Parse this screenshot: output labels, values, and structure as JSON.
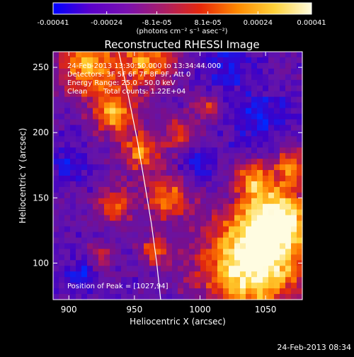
{
  "colorbar": {
    "tick_labels": [
      "-0.00041",
      "-0.00024",
      "-8.1e-05",
      "8.1e-05",
      "0.00024",
      "0.00041"
    ],
    "tick_values": [
      -0.00041,
      -0.00024,
      -8.1e-05,
      8.1e-05,
      0.00024,
      0.00041
    ],
    "range": [
      -0.00041,
      0.00041
    ],
    "unit_label": "(photons cm⁻² s⁻¹ asec⁻²)",
    "colors": [
      "#0000ff",
      "#5a00cc",
      "#7a10b0",
      "#aa1e66",
      "#e8280a",
      "#ff8a00",
      "#ffd23a",
      "#fffce0"
    ]
  },
  "annotations": {
    "time_range": "24-Feb-2013 13:30:50.000 to 13:34:44.000",
    "detectors": "Detectors: 3F 5F 6F 7F 8F 9F, Att 0",
    "energy": "Energy Range: 25.0 - 50.0 keV",
    "clean_label": "Clean",
    "total_counts": "Total counts: 1.22E+04",
    "peak": "Position of Peak = [1027,94]"
  },
  "footer": {
    "timestamp": "24-Feb-2013 08:34"
  },
  "chart_data": {
    "type": "heatmap",
    "title": "Reconstructed RHESSI Image",
    "xlabel": "Heliocentric X (arcsec)",
    "ylabel": "Heliocentric Y (arcsec)",
    "xlim": [
      888,
      1078
    ],
    "ylim": [
      72,
      262
    ],
    "x_ticks": [
      900,
      950,
      1000,
      1050
    ],
    "y_ticks": [
      100,
      150,
      200,
      250
    ],
    "x_tick_labels": [
      "900",
      "950",
      "1000",
      "1050"
    ],
    "y_tick_labels": [
      "100",
      "150",
      "200",
      "250"
    ],
    "peak_position": [
      1027,
      94
    ],
    "limb_curve": [
      [
        938,
        262
      ],
      [
        945,
        230
      ],
      [
        952,
        195
      ],
      [
        958,
        160
      ],
      [
        963,
        130
      ],
      [
        967,
        100
      ],
      [
        970,
        72
      ]
    ],
    "bright_sources": [
      {
        "x": 1040,
        "y": 100,
        "r": 38,
        "intensity": 1.0
      },
      {
        "x": 1060,
        "y": 135,
        "r": 25,
        "intensity": 0.75
      },
      {
        "x": 1040,
        "y": 165,
        "r": 14,
        "intensity": 0.55
      },
      {
        "x": 1070,
        "y": 175,
        "r": 14,
        "intensity": 0.55
      },
      {
        "x": 915,
        "y": 250,
        "r": 22,
        "intensity": 0.7
      },
      {
        "x": 960,
        "y": 255,
        "r": 22,
        "intensity": 0.6
      },
      {
        "x": 935,
        "y": 215,
        "r": 18,
        "intensity": 0.6
      },
      {
        "x": 955,
        "y": 185,
        "r": 16,
        "intensity": 0.55
      },
      {
        "x": 975,
        "y": 150,
        "r": 16,
        "intensity": 0.6
      },
      {
        "x": 935,
        "y": 145,
        "r": 14,
        "intensity": 0.5
      },
      {
        "x": 985,
        "y": 200,
        "r": 12,
        "intensity": 0.45
      },
      {
        "x": 1005,
        "y": 220,
        "r": 10,
        "intensity": 0.4
      },
      {
        "x": 965,
        "y": 110,
        "r": 12,
        "intensity": 0.45
      },
      {
        "x": 925,
        "y": 105,
        "r": 10,
        "intensity": 0.35
      }
    ],
    "dark_regions": [
      {
        "x": 1045,
        "y": 210,
        "r": 22
      },
      {
        "x": 1020,
        "y": 250,
        "r": 18
      },
      {
        "x": 900,
        "y": 175,
        "r": 14
      },
      {
        "x": 910,
        "y": 90,
        "r": 12
      },
      {
        "x": 1000,
        "y": 175,
        "r": 12
      }
    ]
  }
}
